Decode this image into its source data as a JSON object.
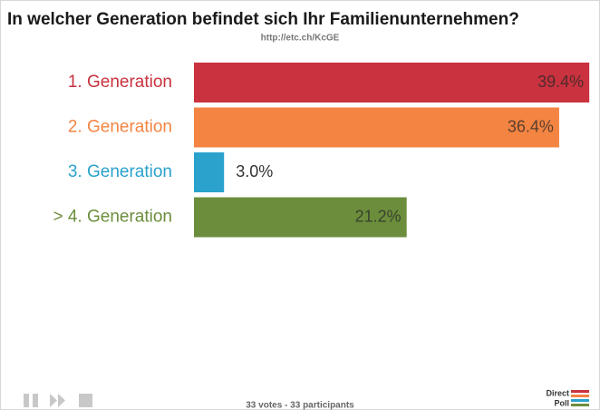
{
  "chart_data": {
    "type": "bar",
    "orientation": "horizontal",
    "title": "In welcher Generation befindet sich Ihr Familienunternehmen?",
    "subtitle": "http://etc.ch/KcGE",
    "categories": [
      "1. Generation",
      "2. Generation",
      "3. Generation",
      "> 4. Generation"
    ],
    "values": [
      39.4,
      36.4,
      3.0,
      21.2
    ],
    "value_labels": [
      "39.4%",
      "36.4%",
      "3.0%",
      "21.2%"
    ],
    "colors": [
      "#c9323e",
      "#f48442",
      "#2aa2cc",
      "#6c8e3c"
    ],
    "footer": "33 votes - 33 participants",
    "logo": [
      "Direct",
      "Poll"
    ]
  }
}
